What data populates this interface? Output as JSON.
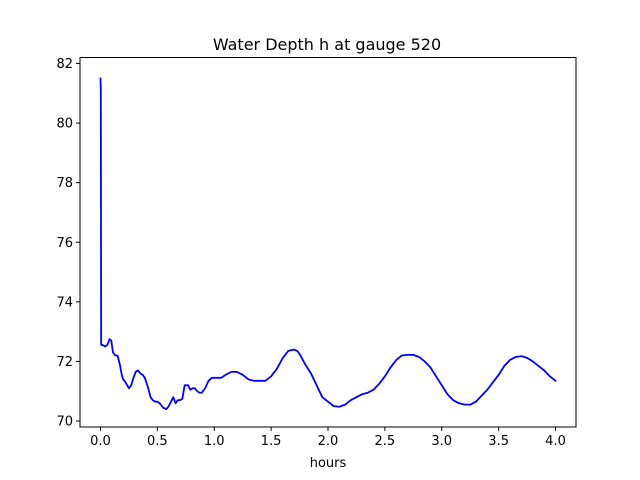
{
  "chart_data": {
    "type": "line",
    "title": "Water Depth h at gauge 520",
    "xlabel": "hours",
    "ylabel": "",
    "xlim": [
      -0.18,
      4.18
    ],
    "ylim": [
      69.8,
      82.2
    ],
    "xticks": [
      0.0,
      0.5,
      1.0,
      1.5,
      2.0,
      2.5,
      3.0,
      3.5,
      4.0
    ],
    "xtick_labels": [
      "0.0",
      "0.5",
      "1.0",
      "1.5",
      "2.0",
      "2.5",
      "3.0",
      "3.5",
      "4.0"
    ],
    "yticks": [
      70,
      72,
      74,
      76,
      78,
      80,
      82
    ],
    "ytick_labels": [
      "70",
      "72",
      "74",
      "76",
      "78",
      "80",
      "82"
    ],
    "grid": false,
    "series": [
      {
        "color": "#0000ff",
        "x": [
          0.0,
          0.003,
          0.006,
          0.008,
          0.012,
          0.02,
          0.04,
          0.06,
          0.08,
          0.095,
          0.11,
          0.13,
          0.15,
          0.17,
          0.19,
          0.2,
          0.22,
          0.25,
          0.27,
          0.29,
          0.31,
          0.33,
          0.35,
          0.37,
          0.39,
          0.42,
          0.44,
          0.46,
          0.48,
          0.5,
          0.52,
          0.55,
          0.58,
          0.6,
          0.62,
          0.64,
          0.66,
          0.68,
          0.7,
          0.72,
          0.74,
          0.77,
          0.79,
          0.81,
          0.83,
          0.85,
          0.87,
          0.89,
          0.92,
          0.95,
          0.98,
          1.0,
          1.03,
          1.06,
          1.1,
          1.15,
          1.2,
          1.25,
          1.3,
          1.35,
          1.4,
          1.45,
          1.5,
          1.55,
          1.6,
          1.65,
          1.7,
          1.73,
          1.75,
          1.8,
          1.85,
          1.9,
          1.95,
          2.0,
          2.05,
          2.1,
          2.15,
          2.2,
          2.25,
          2.3,
          2.35,
          2.4,
          2.45,
          2.5,
          2.55,
          2.6,
          2.65,
          2.7,
          2.75,
          2.8,
          2.85,
          2.9,
          2.95,
          3.0,
          3.05,
          3.1,
          3.15,
          3.2,
          3.25,
          3.3,
          3.35,
          3.4,
          3.45,
          3.5,
          3.55,
          3.6,
          3.65,
          3.7,
          3.75,
          3.8,
          3.85,
          3.9,
          3.95,
          4.0
        ],
        "y": [
          81.5,
          81.1,
          72.6,
          72.55,
          72.55,
          72.55,
          72.5,
          72.55,
          72.75,
          72.7,
          72.3,
          72.2,
          72.2,
          71.9,
          71.5,
          71.4,
          71.3,
          71.1,
          71.2,
          71.45,
          71.65,
          71.7,
          71.6,
          71.55,
          71.45,
          71.1,
          70.8,
          70.7,
          70.65,
          70.65,
          70.6,
          70.45,
          70.4,
          70.5,
          70.65,
          70.8,
          70.6,
          70.7,
          70.7,
          70.75,
          71.2,
          71.2,
          71.05,
          71.1,
          71.1,
          71.0,
          70.95,
          70.95,
          71.1,
          71.35,
          71.45,
          71.45,
          71.45,
          71.45,
          71.55,
          71.65,
          71.65,
          71.55,
          71.4,
          71.35,
          71.35,
          71.35,
          71.5,
          71.75,
          72.1,
          72.35,
          72.4,
          72.35,
          72.25,
          71.9,
          71.6,
          71.2,
          70.8,
          70.65,
          70.5,
          70.48,
          70.55,
          70.7,
          70.8,
          70.9,
          70.95,
          71.05,
          71.25,
          71.5,
          71.8,
          72.05,
          72.2,
          72.22,
          72.22,
          72.15,
          72.0,
          71.8,
          71.5,
          71.2,
          70.9,
          70.7,
          70.6,
          70.55,
          70.55,
          70.65,
          70.85,
          71.05,
          71.3,
          71.55,
          71.85,
          72.05,
          72.15,
          72.18,
          72.12,
          72.0,
          71.85,
          71.7,
          71.5,
          71.35
        ]
      }
    ]
  }
}
